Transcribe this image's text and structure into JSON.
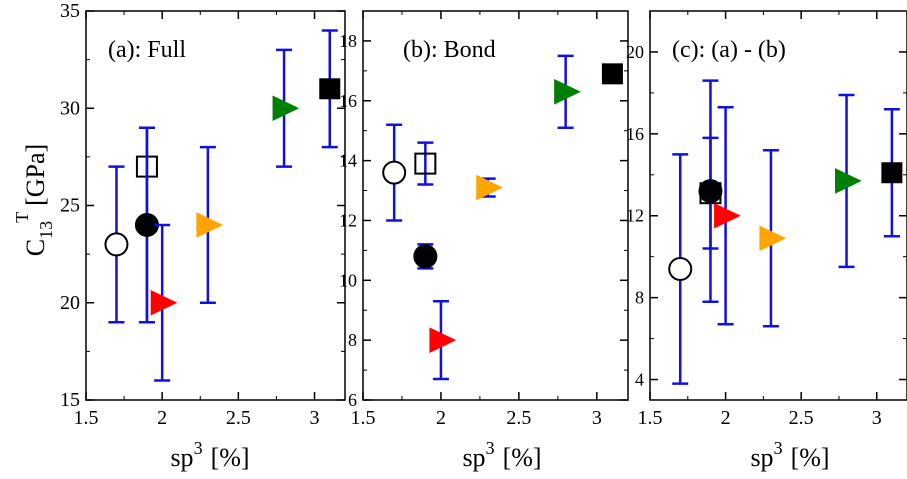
{
  "figure": {
    "ylabel_main": "C",
    "ylabel_sub": "13",
    "ylabel_sup": "T",
    "ylabel_unit": "[GPa]",
    "xlabel_main": "sp",
    "xlabel_sup": "3",
    "xlabel_unit": "[%]"
  },
  "chart_data": [
    {
      "type": "scatter",
      "title": "(a): Full",
      "xlim": [
        1.5,
        3.2
      ],
      "ylim": [
        15,
        35
      ],
      "xticks": [
        1.5,
        2,
        2.5,
        3
      ],
      "xtick_labels": [
        "1.5",
        "2",
        "2.5",
        "3"
      ],
      "yticks": [
        15,
        20,
        25,
        30,
        35
      ],
      "ytick_labels": [
        "15",
        "20",
        "25",
        "30",
        "35"
      ],
      "grid": false,
      "error_bar_color": "#1010e0",
      "points": [
        {
          "x": 1.7,
          "y": 23,
          "err_low": 19,
          "err_high": 27,
          "marker": "circle-open",
          "color": "#000000"
        },
        {
          "x": 1.9,
          "y": 27,
          "err_low": 19,
          "err_high": 29,
          "marker": "square-open",
          "color": "#000000"
        },
        {
          "x": 1.9,
          "y": 24,
          "err_low": 19,
          "err_high": 29,
          "marker": "circle-filled",
          "color": "#000000"
        },
        {
          "x": 2.0,
          "y": 20,
          "err_low": 16,
          "err_high": 24,
          "marker": "triangle-right",
          "color": "#ff0000"
        },
        {
          "x": 2.3,
          "y": 24,
          "err_low": 20,
          "err_high": 28,
          "marker": "triangle-right",
          "color": "#ffa500"
        },
        {
          "x": 2.8,
          "y": 30,
          "err_low": 27,
          "err_high": 33,
          "marker": "triangle-right",
          "color": "#008000"
        },
        {
          "x": 3.1,
          "y": 31,
          "err_low": 28,
          "err_high": 34,
          "marker": "square-filled",
          "color": "#000000"
        }
      ]
    },
    {
      "type": "scatter",
      "title": "(b): Bond",
      "xlim": [
        1.5,
        3.2
      ],
      "ylim": [
        6,
        19
      ],
      "xticks": [
        1.5,
        2,
        2.5,
        3
      ],
      "xtick_labels": [
        "1.5",
        "2",
        "2.5",
        "3"
      ],
      "yticks": [
        6,
        8,
        10,
        12,
        14,
        16,
        18
      ],
      "ytick_labels": [
        "6",
        "8",
        "10",
        "12",
        "14",
        "16",
        "18"
      ],
      "grid": false,
      "error_bar_color": "#1010e0",
      "points": [
        {
          "x": 1.7,
          "y": 13.6,
          "err_low": 12.0,
          "err_high": 15.2,
          "marker": "circle-open",
          "color": "#000000"
        },
        {
          "x": 1.9,
          "y": 13.9,
          "err_low": 13.2,
          "err_high": 14.6,
          "marker": "square-open",
          "color": "#000000"
        },
        {
          "x": 1.9,
          "y": 10.8,
          "err_low": 10.4,
          "err_high": 11.2,
          "marker": "circle-filled",
          "color": "#000000"
        },
        {
          "x": 2.0,
          "y": 8.0,
          "err_low": 6.7,
          "err_high": 9.3,
          "marker": "triangle-right",
          "color": "#ff0000"
        },
        {
          "x": 2.3,
          "y": 13.1,
          "err_low": 12.8,
          "err_high": 13.4,
          "marker": "triangle-right",
          "color": "#ffa500"
        },
        {
          "x": 2.8,
          "y": 16.3,
          "err_low": 15.1,
          "err_high": 17.5,
          "marker": "triangle-right",
          "color": "#008000"
        },
        {
          "x": 3.1,
          "y": 16.9,
          "err_low": 16.9,
          "err_high": 16.9,
          "marker": "square-filled",
          "color": "#000000"
        }
      ]
    },
    {
      "type": "scatter",
      "title": "(c): (a) - (b)",
      "xlim": [
        1.5,
        3.2
      ],
      "ylim": [
        3,
        22
      ],
      "xticks": [
        1.5,
        2,
        2.5,
        3
      ],
      "xtick_labels": [
        "1.5",
        "2",
        "2.5",
        "3"
      ],
      "yticks": [
        4,
        8,
        12,
        16,
        20
      ],
      "ytick_labels": [
        "4",
        "8",
        "12",
        "16",
        "20"
      ],
      "grid": false,
      "error_bar_color": "#1010e0",
      "points": [
        {
          "x": 1.7,
          "y": 9.4,
          "err_low": 3.8,
          "err_high": 15.0,
          "marker": "circle-open",
          "color": "#000000"
        },
        {
          "x": 1.9,
          "y": 13.1,
          "err_low": 10.4,
          "err_high": 15.8,
          "marker": "square-open",
          "color": "#000000"
        },
        {
          "x": 1.9,
          "y": 13.2,
          "err_low": 7.8,
          "err_high": 18.6,
          "marker": "circle-filled",
          "color": "#000000"
        },
        {
          "x": 2.0,
          "y": 12.0,
          "err_low": 6.7,
          "err_high": 17.3,
          "marker": "triangle-right",
          "color": "#ff0000"
        },
        {
          "x": 2.3,
          "y": 10.9,
          "err_low": 6.6,
          "err_high": 15.2,
          "marker": "triangle-right",
          "color": "#ffa500"
        },
        {
          "x": 2.8,
          "y": 13.7,
          "err_low": 9.5,
          "err_high": 17.9,
          "marker": "triangle-right",
          "color": "#008000"
        },
        {
          "x": 3.1,
          "y": 14.1,
          "err_low": 11.0,
          "err_high": 17.2,
          "marker": "square-filled",
          "color": "#000000"
        }
      ]
    }
  ]
}
